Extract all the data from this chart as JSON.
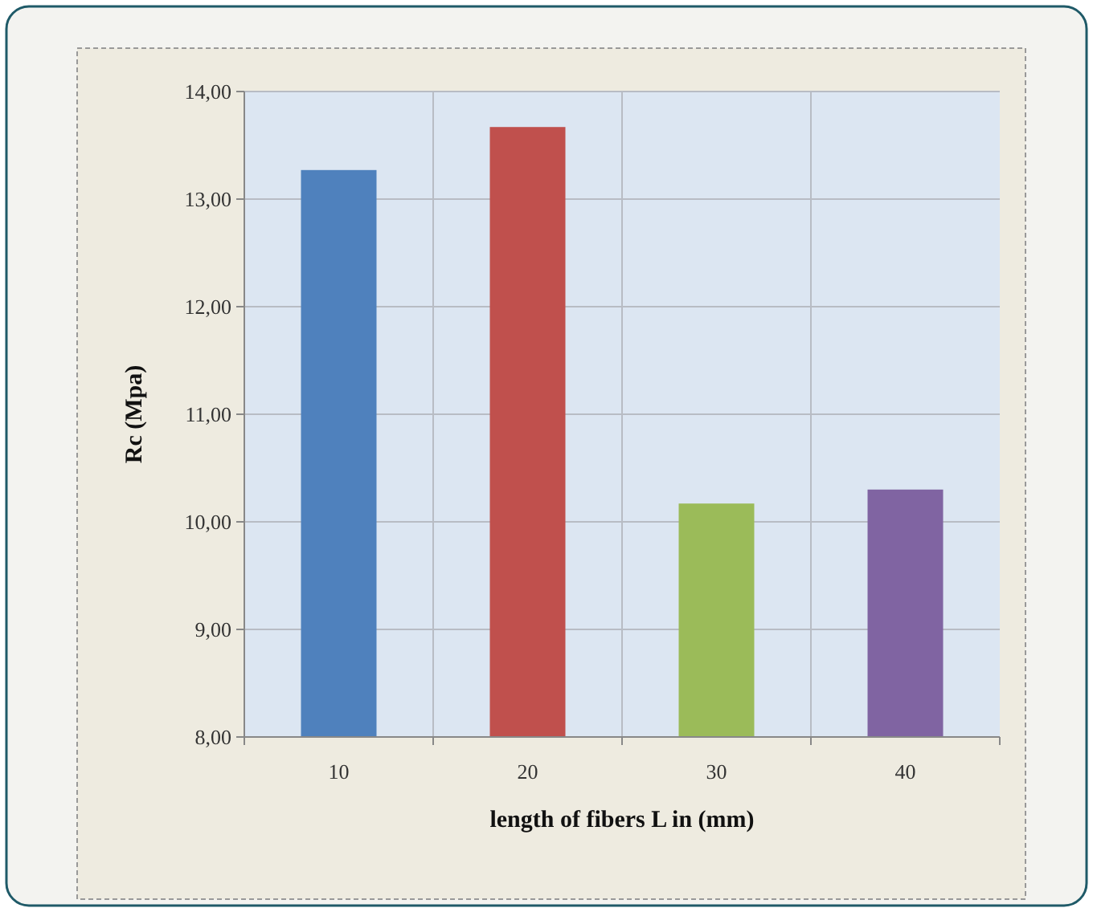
{
  "chart_data": {
    "type": "bar",
    "xlabel": "length of fibers L in (mm)",
    "ylabel": "Rc (Mpa)",
    "categories": [
      "10",
      "20",
      "30",
      "40"
    ],
    "values": [
      13.27,
      13.67,
      10.17,
      10.3
    ],
    "colors": [
      "#4f81bd",
      "#c0504d",
      "#9bbb59",
      "#8064a2"
    ],
    "ylim": [
      8,
      14
    ],
    "yticks": [
      {
        "value": 8,
        "label": "8,00"
      },
      {
        "value": 9,
        "label": "9,00"
      },
      {
        "value": 10,
        "label": "10,00"
      },
      {
        "value": 11,
        "label": "11,00"
      },
      {
        "value": 12,
        "label": "12,00"
      },
      {
        "value": 13,
        "label": "13,00"
      },
      {
        "value": 14,
        "label": "14,00"
      }
    ],
    "grid": true
  }
}
